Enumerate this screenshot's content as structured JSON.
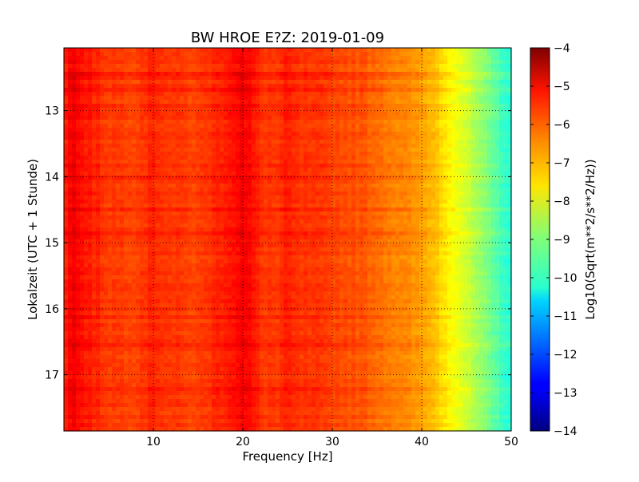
{
  "chart_data": {
    "type": "heatmap",
    "title": "BW HROE E?Z: 2019-01-09",
    "xlabel": "Frequency [Hz]",
    "ylabel": "Lokalzeit (UTC + 1 Stunde)",
    "xlim": [
      0,
      50
    ],
    "ylim": [
      12.05,
      17.85
    ],
    "y_inverted": true,
    "xticks": [
      10,
      20,
      30,
      40,
      50
    ],
    "yticks": [
      13,
      14,
      15,
      16,
      17
    ],
    "grid": true,
    "colormap": "jet",
    "colorbar": {
      "label": "Log10(Sqrt(m**2/s**2/Hz))",
      "range": [
        -14,
        -4
      ],
      "ticks": [
        -4,
        -5,
        -6,
        -7,
        -8,
        -9,
        -10,
        -11,
        -12,
        -13,
        -14
      ]
    },
    "spectrum_profile": {
      "frequency_hz": [
        0,
        1,
        2,
        5,
        8,
        10,
        12,
        15,
        18,
        20,
        21,
        22,
        24,
        25,
        26,
        28,
        30,
        33,
        35,
        37,
        39,
        41,
        42,
        43,
        44,
        45,
        46,
        47,
        48,
        49,
        50
      ],
      "log10_amplitude": [
        -5.6,
        -5.1,
        -5.4,
        -5.8,
        -5.85,
        -5.6,
        -5.8,
        -5.9,
        -5.5,
        -5.2,
        -5.4,
        -5.75,
        -5.8,
        -5.55,
        -5.75,
        -5.8,
        -5.9,
        -6.05,
        -6.25,
        -6.5,
        -6.7,
        -7.0,
        -7.3,
        -7.6,
        -7.9,
        -8.25,
        -8.6,
        -8.95,
        -9.3,
        -9.6,
        -9.9
      ]
    }
  }
}
